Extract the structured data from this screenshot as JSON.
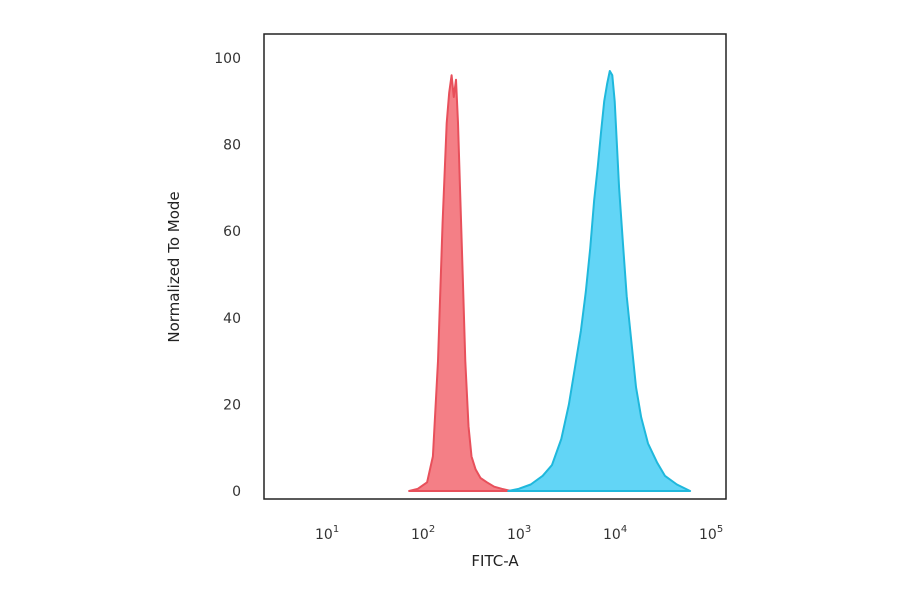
{
  "chart_data": {
    "type": "area",
    "title": "",
    "xlabel": "FITC-A",
    "ylabel": "Normalized To Mode",
    "x_scale": "log",
    "xlim": [
      2.0,
      130000
    ],
    "ylim": [
      0,
      105
    ],
    "x_ticks": [
      {
        "base": "10",
        "exp": "1",
        "value": 10
      },
      {
        "base": "10",
        "exp": "2",
        "value": 100
      },
      {
        "base": "10",
        "exp": "3",
        "value": 1000
      },
      {
        "base": "10",
        "exp": "4",
        "value": 10000
      },
      {
        "base": "10",
        "exp": "5",
        "value": 100000
      }
    ],
    "y_ticks": [
      "0",
      "20",
      "40",
      "60",
      "80",
      "100"
    ],
    "grid": false,
    "legend": "none",
    "series": [
      {
        "color": "#e8505b",
        "fill": "#f47f86",
        "x": [
          65,
          80,
          100,
          115,
          130,
          145,
          160,
          170,
          180,
          190,
          200,
          210,
          220,
          235,
          250,
          270,
          290,
          320,
          360,
          420,
          500,
          600,
          750
        ],
        "y": [
          0,
          0.5,
          2,
          8,
          30,
          62,
          85,
          92,
          96,
          91,
          95,
          85,
          70,
          50,
          30,
          15,
          8,
          5,
          3,
          2,
          1,
          0.5,
          0
        ]
      },
      {
        "color": "#1fb8dc",
        "fill": "#62d5f6",
        "x": [
          700,
          900,
          1200,
          1600,
          2000,
          2500,
          3000,
          3500,
          4000,
          4500,
          5000,
          5500,
          6000,
          6500,
          7000,
          7500,
          8000,
          8500,
          9000,
          9500,
          10000,
          11000,
          12000,
          13500,
          15000,
          17000,
          20000,
          25000,
          30000,
          40000,
          55000
        ],
        "y": [
          0,
          0.5,
          1.5,
          3.5,
          6,
          12,
          20,
          29,
          37,
          46,
          56,
          67,
          75,
          83,
          90,
          94,
          97,
          96,
          90,
          80,
          70,
          57,
          45,
          34,
          24,
          17,
          11,
          6.5,
          3.5,
          1.5,
          0
        ]
      }
    ]
  }
}
